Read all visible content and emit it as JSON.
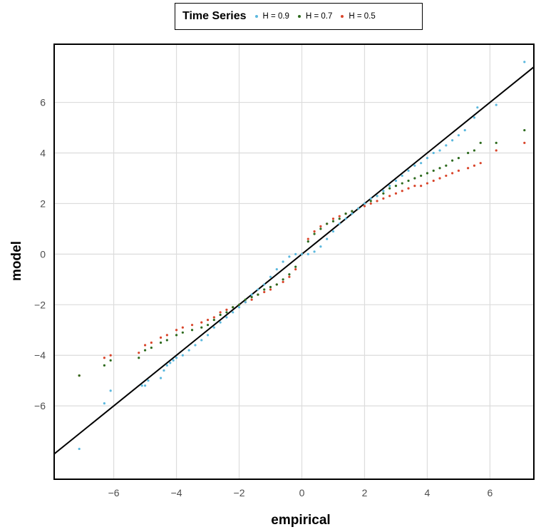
{
  "legend": {
    "title": "Time Series",
    "entries": [
      "H = 0.9",
      "H = 0.7",
      "H = 0.5"
    ]
  },
  "colors": {
    "H09": "#5bb8de",
    "H07": "#2e6b1f",
    "H05": "#d9452b",
    "refline": "#000000",
    "grid": "#dcdcdc"
  },
  "chart_data": {
    "type": "scatter",
    "xlabel": "empirical",
    "ylabel": "model",
    "xlim": [
      -7.9,
      7.4
    ],
    "ylim": [
      -8.9,
      8.3
    ],
    "xticks": [
      -6,
      -4,
      -2,
      0,
      2,
      4,
      6
    ],
    "yticks": [
      -6,
      -4,
      -2,
      0,
      2,
      4,
      6
    ],
    "grid": true,
    "legend_position": "top",
    "reference_line": {
      "slope": 1,
      "intercept": 0
    },
    "series": [
      {
        "name": "H = 0.9",
        "points": [
          [
            -7.1,
            -7.7
          ],
          [
            -6.3,
            -5.9
          ],
          [
            -6.1,
            -5.4
          ],
          [
            -5.1,
            -5.2
          ],
          [
            -5.0,
            -5.2
          ],
          [
            -4.9,
            -5.0
          ],
          [
            -4.5,
            -4.9
          ],
          [
            -4.4,
            -4.6
          ],
          [
            -4.3,
            -4.4
          ],
          [
            -4.2,
            -4.3
          ],
          [
            -4.1,
            -4.2
          ],
          [
            -4.0,
            -4.1
          ],
          [
            -3.8,
            -4.0
          ],
          [
            -3.6,
            -3.8
          ],
          [
            -3.4,
            -3.6
          ],
          [
            -3.2,
            -3.4
          ],
          [
            -3.0,
            -3.2
          ],
          [
            -2.8,
            -2.9
          ],
          [
            -2.6,
            -2.7
          ],
          [
            -2.4,
            -2.5
          ],
          [
            -2.2,
            -2.3
          ],
          [
            -2.0,
            -2.1
          ],
          [
            -1.8,
            -1.9
          ],
          [
            -1.6,
            -1.6
          ],
          [
            -1.4,
            -1.4
          ],
          [
            -1.2,
            -1.2
          ],
          [
            -1.0,
            -0.9
          ],
          [
            -0.8,
            -0.6
          ],
          [
            -0.6,
            -0.3
          ],
          [
            -0.4,
            -0.1
          ],
          [
            -0.2,
            0.0
          ],
          [
            0.0,
            0.0
          ],
          [
            0.2,
            0.0
          ],
          [
            0.4,
            0.1
          ],
          [
            0.6,
            0.3
          ],
          [
            0.8,
            0.6
          ],
          [
            1.0,
            0.9
          ],
          [
            1.2,
            1.2
          ],
          [
            1.4,
            1.4
          ],
          [
            1.6,
            1.6
          ],
          [
            1.8,
            1.8
          ],
          [
            2.0,
            2.0
          ],
          [
            2.2,
            2.2
          ],
          [
            2.4,
            2.3
          ],
          [
            2.6,
            2.5
          ],
          [
            2.8,
            2.7
          ],
          [
            3.0,
            2.9
          ],
          [
            3.2,
            3.1
          ],
          [
            3.4,
            3.3
          ],
          [
            3.6,
            3.5
          ],
          [
            3.8,
            3.6
          ],
          [
            4.0,
            3.8
          ],
          [
            4.2,
            4.0
          ],
          [
            4.4,
            4.1
          ],
          [
            4.6,
            4.3
          ],
          [
            4.8,
            4.5
          ],
          [
            5.0,
            4.7
          ],
          [
            5.2,
            4.9
          ],
          [
            5.5,
            5.4
          ],
          [
            5.6,
            5.8
          ],
          [
            6.2,
            5.9
          ],
          [
            7.1,
            7.6
          ]
        ]
      },
      {
        "name": "H = 0.7",
        "points": [
          [
            -7.1,
            -4.8
          ],
          [
            -6.3,
            -4.4
          ],
          [
            -6.1,
            -4.2
          ],
          [
            -5.2,
            -4.1
          ],
          [
            -5.0,
            -3.8
          ],
          [
            -4.8,
            -3.7
          ],
          [
            -4.5,
            -3.5
          ],
          [
            -4.3,
            -3.4
          ],
          [
            -4.0,
            -3.2
          ],
          [
            -3.8,
            -3.1
          ],
          [
            -3.5,
            -3.0
          ],
          [
            -3.2,
            -2.9
          ],
          [
            -3.0,
            -2.8
          ],
          [
            -2.8,
            -2.6
          ],
          [
            -2.6,
            -2.4
          ],
          [
            -2.4,
            -2.3
          ],
          [
            -2.2,
            -2.1
          ],
          [
            -2.0,
            -2.0
          ],
          [
            -1.8,
            -1.8
          ],
          [
            -1.6,
            -1.7
          ],
          [
            -1.4,
            -1.6
          ],
          [
            -1.2,
            -1.4
          ],
          [
            -1.0,
            -1.3
          ],
          [
            -0.8,
            -1.2
          ],
          [
            -0.6,
            -1.0
          ],
          [
            -0.4,
            -0.8
          ],
          [
            -0.2,
            -0.5
          ],
          [
            0.0,
            0.0
          ],
          [
            0.2,
            0.5
          ],
          [
            0.4,
            0.8
          ],
          [
            0.6,
            1.0
          ],
          [
            0.8,
            1.2
          ],
          [
            1.0,
            1.3
          ],
          [
            1.2,
            1.4
          ],
          [
            1.4,
            1.6
          ],
          [
            1.6,
            1.7
          ],
          [
            1.8,
            1.8
          ],
          [
            2.0,
            2.0
          ],
          [
            2.2,
            2.1
          ],
          [
            2.4,
            2.3
          ],
          [
            2.6,
            2.4
          ],
          [
            2.8,
            2.6
          ],
          [
            3.0,
            2.7
          ],
          [
            3.2,
            2.8
          ],
          [
            3.4,
            2.9
          ],
          [
            3.6,
            3.0
          ],
          [
            3.8,
            3.1
          ],
          [
            4.0,
            3.2
          ],
          [
            4.2,
            3.3
          ],
          [
            4.4,
            3.4
          ],
          [
            4.6,
            3.5
          ],
          [
            4.8,
            3.7
          ],
          [
            5.0,
            3.8
          ],
          [
            5.3,
            4.0
          ],
          [
            5.5,
            4.1
          ],
          [
            5.7,
            4.4
          ],
          [
            6.2,
            4.4
          ],
          [
            7.1,
            4.9
          ]
        ]
      },
      {
        "name": "H = 0.5",
        "points": [
          [
            -7.1,
            -4.8
          ],
          [
            -6.3,
            -4.1
          ],
          [
            -6.1,
            -4.0
          ],
          [
            -5.2,
            -3.9
          ],
          [
            -5.0,
            -3.6
          ],
          [
            -4.8,
            -3.5
          ],
          [
            -4.5,
            -3.3
          ],
          [
            -4.3,
            -3.2
          ],
          [
            -4.0,
            -3.0
          ],
          [
            -3.8,
            -2.9
          ],
          [
            -3.5,
            -2.8
          ],
          [
            -3.2,
            -2.7
          ],
          [
            -3.0,
            -2.6
          ],
          [
            -2.8,
            -2.5
          ],
          [
            -2.6,
            -2.3
          ],
          [
            -2.4,
            -2.2
          ],
          [
            -2.2,
            -2.1
          ],
          [
            -2.0,
            -2.0
          ],
          [
            -1.8,
            -1.9
          ],
          [
            -1.6,
            -1.8
          ],
          [
            -1.4,
            -1.6
          ],
          [
            -1.2,
            -1.5
          ],
          [
            -1.0,
            -1.4
          ],
          [
            -0.8,
            -1.2
          ],
          [
            -0.6,
            -1.1
          ],
          [
            -0.4,
            -0.9
          ],
          [
            -0.2,
            -0.6
          ],
          [
            0.0,
            0.0
          ],
          [
            0.2,
            0.6
          ],
          [
            0.4,
            0.9
          ],
          [
            0.6,
            1.1
          ],
          [
            0.8,
            1.2
          ],
          [
            1.0,
            1.4
          ],
          [
            1.2,
            1.5
          ],
          [
            1.4,
            1.6
          ],
          [
            1.6,
            1.7
          ],
          [
            1.8,
            1.8
          ],
          [
            2.0,
            1.9
          ],
          [
            2.2,
            2.0
          ],
          [
            2.4,
            2.1
          ],
          [
            2.6,
            2.2
          ],
          [
            2.8,
            2.3
          ],
          [
            3.0,
            2.4
          ],
          [
            3.2,
            2.5
          ],
          [
            3.4,
            2.6
          ],
          [
            3.6,
            2.7
          ],
          [
            3.8,
            2.7
          ],
          [
            4.0,
            2.8
          ],
          [
            4.2,
            2.9
          ],
          [
            4.4,
            3.0
          ],
          [
            4.6,
            3.1
          ],
          [
            4.8,
            3.2
          ],
          [
            5.0,
            3.3
          ],
          [
            5.3,
            3.4
          ],
          [
            5.5,
            3.5
          ],
          [
            5.7,
            3.6
          ],
          [
            6.2,
            4.1
          ],
          [
            7.1,
            4.4
          ]
        ]
      }
    ]
  }
}
